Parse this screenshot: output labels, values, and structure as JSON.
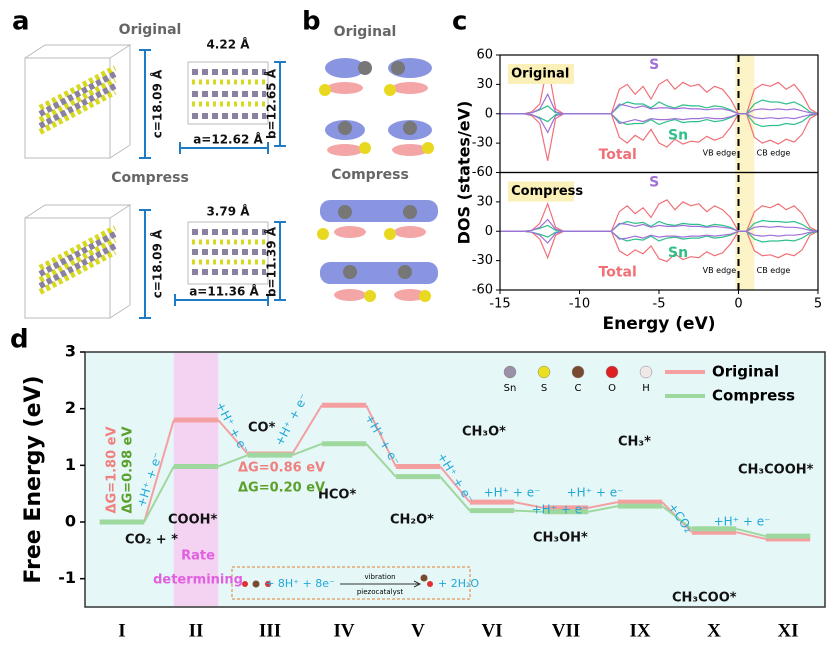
{
  "panel_labels": [
    "a",
    "b",
    "c",
    "d"
  ],
  "panel_a": {
    "original": {
      "title": "Original",
      "spacing": "4.22 Å",
      "c": "c=18.09 Å",
      "b": "b=12.65 Å",
      "a": "a=12.62 Å"
    },
    "compress": {
      "title": "Compress",
      "spacing": "3.79 Å",
      "c": "c=18.09 Å",
      "b": "b=11.39 Å",
      "a": "a=11.36 Å"
    }
  },
  "panel_b": {
    "original": "Original",
    "compress": "Compress"
  },
  "chart_data": [
    {
      "type": "line",
      "xlabel": "Energy (eV)",
      "ylabel": "DOS (states/eV)",
      "xlim": [
        -15,
        5
      ],
      "xticks": [
        -15,
        -10,
        -5,
        0,
        5
      ],
      "vline": 0,
      "band": [
        -0.2,
        1
      ],
      "x": [
        -15,
        -14.5,
        -14,
        -13.5,
        -13,
        -12.5,
        -12,
        -11.5,
        -11,
        -10.5,
        -10,
        -9.5,
        -9,
        -8.5,
        -8,
        -7.5,
        -7,
        -6.5,
        -6,
        -5.5,
        -5,
        -4.5,
        -4,
        -3.5,
        -3,
        -2.5,
        -2,
        -1.5,
        -1,
        -0.5,
        0,
        0.5,
        1,
        1.5,
        2,
        2.5,
        3,
        3.5,
        4,
        4.5,
        5
      ],
      "subplots": [
        {
          "title": "Original",
          "ylim": [
            -60,
            60
          ],
          "yticks": [
            60,
            30,
            0,
            -30,
            -60
          ],
          "annotations": [
            "VB edge",
            "CB edge"
          ],
          "series": [
            {
              "name": "Total",
              "color": "#f07078",
              "values": [
                0,
                0,
                0,
                0,
                2,
                10,
                50,
                5,
                0,
                0,
                0,
                0,
                0,
                0,
                0,
                25,
                30,
                20,
                28,
                15,
                30,
                35,
                25,
                32,
                28,
                30,
                22,
                28,
                25,
                15,
                0,
                0,
                25,
                30,
                28,
                32,
                25,
                30,
                20,
                5,
                0
              ],
              "values_down": [
                0,
                0,
                0,
                0,
                -2,
                -10,
                -48,
                -5,
                0,
                0,
                0,
                0,
                0,
                0,
                0,
                -24,
                -30,
                -22,
                -27,
                -16,
                -30,
                -34,
                -26,
                -31,
                -28,
                -29,
                -23,
                -27,
                -24,
                -14,
                0,
                0,
                -24,
                -30,
                -27,
                -31,
                -26,
                -29,
                -21,
                -5,
                0
              ]
            },
            {
              "name": "Sn",
              "color": "#2fc08a",
              "values": [
                0,
                0,
                0,
                0,
                1,
                4,
                8,
                1,
                0,
                0,
                0,
                0,
                0,
                0,
                0,
                8,
                12,
                10,
                10,
                6,
                12,
                8,
                6,
                9,
                8,
                8,
                6,
                8,
                7,
                4,
                0,
                0,
                10,
                14,
                12,
                12,
                10,
                12,
                8,
                2,
                0
              ],
              "values_down": [
                0,
                0,
                0,
                0,
                -1,
                -4,
                -8,
                -1,
                0,
                0,
                0,
                0,
                0,
                0,
                0,
                -8,
                -11,
                -10,
                -10,
                -6,
                -11,
                -8,
                -6,
                -9,
                -8,
                -8,
                -6,
                -8,
                -7,
                -4,
                0,
                0,
                -10,
                -13,
                -12,
                -12,
                -10,
                -11,
                -8,
                -2,
                0
              ]
            },
            {
              "name": "S",
              "color": "#a070d8",
              "values": [
                0,
                0,
                0,
                0,
                1,
                5,
                20,
                2,
                0,
                0,
                0,
                0,
                0,
                0,
                0,
                10,
                8,
                6,
                8,
                5,
                6,
                6,
                5,
                6,
                5,
                5,
                4,
                5,
                5,
                3,
                0,
                0,
                4,
                5,
                4,
                5,
                4,
                5,
                3,
                1,
                0
              ],
              "values_down": [
                0,
                0,
                0,
                0,
                -1,
                -5,
                -19,
                -2,
                0,
                0,
                0,
                0,
                0,
                0,
                0,
                -10,
                -8,
                -6,
                -8,
                -5,
                -6,
                -6,
                -5,
                -6,
                -5,
                -5,
                -4,
                -5,
                -5,
                -3,
                0,
                0,
                -4,
                -5,
                -4,
                -5,
                -4,
                -5,
                -3,
                -1,
                0
              ]
            }
          ]
        },
        {
          "title": "Compress",
          "ylim": [
            -60,
            60
          ],
          "yticks": [
            30,
            0,
            -30,
            -60
          ],
          "annotations": [
            "VB edge",
            "CB edge"
          ],
          "series": [
            {
              "name": "Total",
              "color": "#f07078",
              "values": [
                0,
                0,
                0,
                0,
                1,
                8,
                28,
                4,
                0,
                0,
                0,
                0,
                0,
                0,
                0,
                20,
                26,
                18,
                24,
                14,
                28,
                32,
                22,
                30,
                26,
                28,
                20,
                26,
                22,
                14,
                0,
                0,
                20,
                26,
                24,
                28,
                22,
                26,
                18,
                4,
                0
              ],
              "values_down": [
                0,
                0,
                0,
                0,
                -1,
                -8,
                -27,
                -4,
                0,
                0,
                0,
                0,
                0,
                0,
                0,
                -20,
                -25,
                -19,
                -23,
                -15,
                -28,
                -31,
                -23,
                -29,
                -26,
                -27,
                -21,
                -25,
                -22,
                -13,
                0,
                0,
                -20,
                -25,
                -24,
                -27,
                -23,
                -25,
                -19,
                -4,
                0
              ]
            },
            {
              "name": "Sn",
              "color": "#2fc08a",
              "values": [
                0,
                0,
                0,
                0,
                1,
                3,
                6,
                1,
                0,
                0,
                0,
                0,
                0,
                0,
                0,
                7,
                10,
                8,
                9,
                5,
                10,
                7,
                6,
                8,
                7,
                7,
                5,
                7,
                6,
                4,
                0,
                0,
                8,
                11,
                10,
                10,
                9,
                10,
                7,
                2,
                0
              ],
              "values_down": [
                0,
                0,
                0,
                0,
                -1,
                -3,
                -6,
                -1,
                0,
                0,
                0,
                0,
                0,
                0,
                0,
                -7,
                -10,
                -8,
                -9,
                -5,
                -10,
                -7,
                -6,
                -8,
                -7,
                -7,
                -5,
                -7,
                -6,
                -4,
                0,
                0,
                -8,
                -11,
                -10,
                -10,
                -9,
                -10,
                -7,
                -2,
                0
              ]
            },
            {
              "name": "S",
              "color": "#a070d8",
              "values": [
                0,
                0,
                0,
                0,
                1,
                4,
                12,
                2,
                0,
                0,
                0,
                0,
                0,
                0,
                0,
                8,
                7,
                5,
                7,
                4,
                6,
                5,
                5,
                6,
                5,
                5,
                4,
                5,
                4,
                3,
                0,
                0,
                4,
                5,
                4,
                5,
                4,
                4,
                3,
                1,
                0
              ],
              "values_down": [
                0,
                0,
                0,
                0,
                -1,
                -4,
                -12,
                -2,
                0,
                0,
                0,
                0,
                0,
                0,
                0,
                -8,
                -7,
                -5,
                -7,
                -4,
                -6,
                -5,
                -5,
                -6,
                -5,
                -5,
                -4,
                -5,
                -4,
                -3,
                0,
                0,
                -4,
                -5,
                -4,
                -5,
                -4,
                -4,
                -3,
                -1,
                0
              ]
            }
          ]
        }
      ]
    },
    {
      "type": "step",
      "ylabel": "Free Energy (eV)",
      "ylim": [
        -1.5,
        3
      ],
      "yticks": [
        -1,
        0,
        1,
        2,
        3
      ],
      "legend": "upper right",
      "categories": [
        "I",
        "II",
        "III",
        "IV",
        "V",
        "VI",
        "VII",
        "IX",
        "X",
        "XI"
      ],
      "series": [
        {
          "name": "Original",
          "color": "#f4a0a0",
          "values": [
            0,
            1.8,
            1.2,
            2.06,
            0.98,
            0.35,
            0.25,
            0.35,
            -0.18,
            -0.3
          ]
        },
        {
          "name": "Compress",
          "color": "#9ed89e",
          "values": [
            0,
            0.98,
            1.18,
            1.38,
            0.8,
            0.2,
            0.18,
            0.28,
            -0.12,
            -0.25
          ]
        }
      ],
      "annotations": [
        "CO₂ + *",
        "COOH*",
        "CO*",
        "HCO*",
        "CH₂O*",
        "CH₃O*",
        "CH₃OH*",
        "CH₃*",
        "CH₃COO*",
        "CH₃COOH*",
        "ΔG=1.80 eV",
        "ΔG=0.98 eV",
        "ΔG=0.86 eV",
        "ΔG=0.20 eV",
        "Rate",
        "determining",
        "+H⁺ + e⁻",
        "+H⁺ + e⁻",
        "+H⁺ + e⁻",
        "+H⁺ + e⁻",
        "+H⁺ + e⁻",
        "+H⁺ + e⁻",
        "+H⁺ + e⁻",
        "+H⁺ + e⁻",
        "+CO₂",
        "+H⁺ + e⁻"
      ],
      "atoms": [
        {
          "label": "Sn",
          "color": "#9a90a8"
        },
        {
          "label": "S",
          "color": "#e8e020"
        },
        {
          "label": "C",
          "color": "#7a4a30"
        },
        {
          "label": "O",
          "color": "#e02020"
        },
        {
          "label": "H",
          "color": "#f0e8e8"
        }
      ],
      "reaction": [
        "+ 8H⁺ + 8e⁻",
        "vibration",
        "piezocatalyst",
        "+ 2H₂O"
      ]
    }
  ]
}
